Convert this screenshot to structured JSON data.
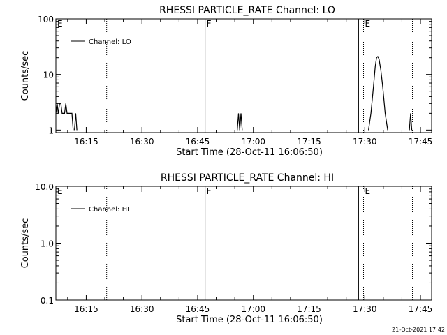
{
  "footer_date": "21-Oct-2021 17:42",
  "chart_data": [
    {
      "type": "line",
      "title": "RHESSI PARTICLE_RATE Channel: LO",
      "xlabel": "Start Time (28-Oct-11 16:06:50)",
      "ylabel": "Counts/sec",
      "yscale": "log",
      "ylim": [
        0.9,
        100
      ],
      "y_ticks": [
        {
          "value": 1,
          "label": "1"
        },
        {
          "value": 10,
          "label": "10"
        },
        {
          "value": 100,
          "label": "100"
        }
      ],
      "xlim": [
        "16:06:50",
        "17:48:00"
      ],
      "x_ticks": [
        "16:15",
        "16:30",
        "16:45",
        "17:00",
        "17:15",
        "17:30",
        "17:45"
      ],
      "legend": {
        "label": "Channel: LO",
        "position": "top-left"
      },
      "markers": [
        {
          "label": "E",
          "time": "16:06:50",
          "style": "dotted"
        },
        {
          "time": "16:20:30",
          "style": "dotted"
        },
        {
          "label": "F",
          "time": "16:47:00",
          "style": "solid"
        },
        {
          "time": "17:28:20",
          "style": "solid"
        },
        {
          "label": "E",
          "time": "17:29:40",
          "style": "dotted"
        },
        {
          "time": "17:42:50",
          "style": "dotted"
        }
      ],
      "series": [
        {
          "name": "Channel: LO",
          "segments": [
            {
              "x": [
                "16:06:50",
                "16:07:10",
                "16:07:30",
                "16:07:50",
                "16:08:10",
                "16:08:30",
                "16:08:50",
                "16:09:10",
                "16:09:30",
                "16:09:50",
                "16:10:10",
                "16:10:30",
                "16:10:50",
                "16:11:10",
                "16:11:30"
              ],
              "y": [
                2,
                3,
                2,
                3,
                3,
                2,
                2,
                2,
                3,
                2,
                2,
                2,
                2,
                2,
                1
              ]
            },
            {
              "x": [
                "16:11:50",
                "16:12:10",
                "16:12:30"
              ],
              "y": [
                1,
                2,
                1
              ]
            },
            {
              "x": [
                "16:55:40",
                "16:56:00",
                "16:56:20",
                "16:56:40",
                "16:57:00"
              ],
              "y": [
                1,
                2,
                1,
                2,
                1
              ]
            },
            {
              "x": [
                "17:31:00",
                "17:31:40",
                "17:32:20",
                "17:32:50",
                "17:33:10",
                "17:33:30",
                "17:33:50",
                "17:34:20",
                "17:34:50",
                "17:35:30",
                "17:36:10"
              ],
              "y": [
                1,
                2,
                6,
                14,
                20,
                21,
                19,
                12,
                6,
                2,
                1
              ]
            },
            {
              "x": [
                "17:42:00",
                "17:42:20",
                "17:42:40"
              ],
              "y": [
                1,
                2,
                1
              ]
            }
          ]
        }
      ]
    },
    {
      "type": "line",
      "title": "RHESSI PARTICLE_RATE Channel: HI",
      "xlabel": "Start Time (28-Oct-11 16:06:50)",
      "ylabel": "Counts/sec",
      "yscale": "log",
      "ylim": [
        0.1,
        10
      ],
      "y_ticks": [
        {
          "value": 0.1,
          "label": "0.1"
        },
        {
          "value": 1,
          "label": "1.0"
        },
        {
          "value": 10,
          "label": "10.0"
        }
      ],
      "xlim": [
        "16:06:50",
        "17:48:00"
      ],
      "x_ticks": [
        "16:15",
        "16:30",
        "16:45",
        "17:00",
        "17:15",
        "17:30",
        "17:45"
      ],
      "legend": {
        "label": "Channel: HI",
        "position": "top-left"
      },
      "markers": [
        {
          "label": "E",
          "time": "16:06:50",
          "style": "dotted"
        },
        {
          "time": "16:20:30",
          "style": "dotted"
        },
        {
          "label": "F",
          "time": "16:47:00",
          "style": "solid"
        },
        {
          "time": "17:28:20",
          "style": "solid"
        },
        {
          "label": "E",
          "time": "17:29:40",
          "style": "dotted"
        },
        {
          "time": "17:42:50",
          "style": "dotted"
        }
      ],
      "series": [
        {
          "name": "Channel: HI",
          "segments": []
        }
      ]
    }
  ]
}
